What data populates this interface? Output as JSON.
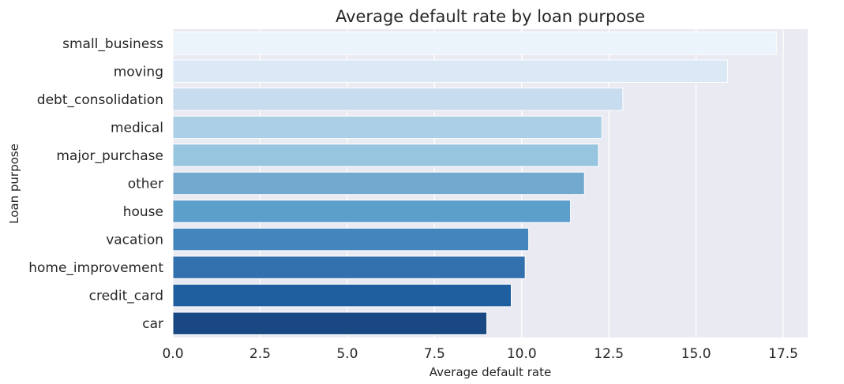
{
  "chart_data": {
    "type": "bar",
    "orientation": "horizontal",
    "title": "Average default rate by loan purpose",
    "xlabel": "Average default rate",
    "ylabel": "Loan purpose",
    "categories": [
      "small_business",
      "moving",
      "debt_consolidation",
      "medical",
      "major_purchase",
      "other",
      "house",
      "vacation",
      "home_improvement",
      "credit_card",
      "car"
    ],
    "values": [
      17.3,
      15.9,
      12.9,
      12.3,
      12.2,
      11.8,
      11.4,
      10.2,
      10.1,
      9.7,
      9.0
    ],
    "xlim": [
      0,
      18.2
    ],
    "xticks": [
      0.0,
      2.5,
      5.0,
      7.5,
      10.0,
      12.5,
      15.0,
      17.5
    ],
    "xtick_labels": [
      "0.0",
      "2.5",
      "5.0",
      "7.5",
      "10.0",
      "12.5",
      "15.0",
      "17.5"
    ],
    "colors": [
      "#ebf3fb",
      "#dbe9f6",
      "#c7dcef",
      "#abd0e6",
      "#97c4df",
      "#74a9cf",
      "#5c9fcb",
      "#4286bd",
      "#3270ae",
      "#1f5fa0",
      "#1a4882"
    ],
    "grid": true,
    "grid_axis": "x",
    "background": "#eaeaf2",
    "legend": "none"
  }
}
